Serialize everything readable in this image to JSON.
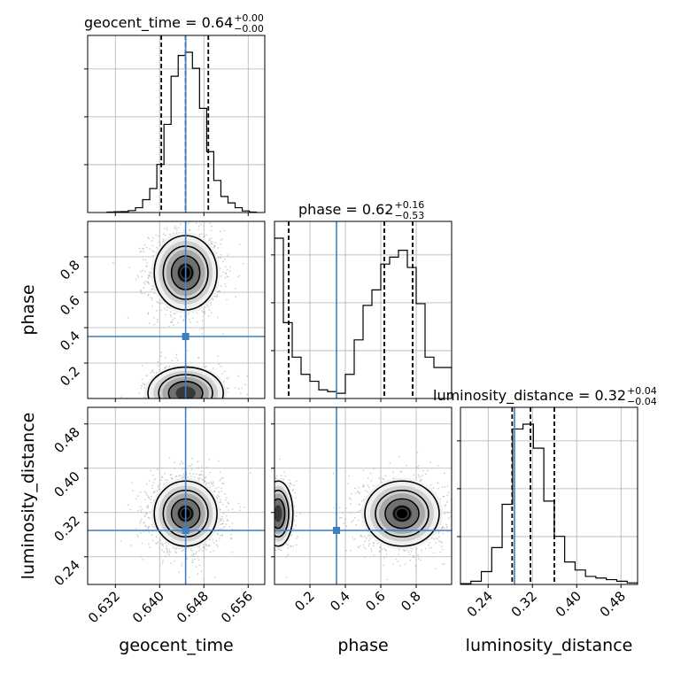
{
  "chart_data": {
    "type": "corner",
    "parameters": [
      "geocent_time",
      "phase",
      "luminosity_distance"
    ],
    "titles": [
      {
        "param": "geocent_time",
        "prefix": "geocent_time = ",
        "median": "0.64",
        "plus": "+0.00",
        "minus": "−0.00"
      },
      {
        "param": "phase",
        "prefix": "phase = ",
        "median": "0.62",
        "plus": "+0.16",
        "minus": "−0.53"
      },
      {
        "param": "luminosity_distance",
        "prefix": "luminosity_distance = ",
        "median": "0.32",
        "plus": "+0.04",
        "minus": "−0.04"
      }
    ],
    "axes": {
      "geocent_time": {
        "range": [
          0.627,
          0.659
        ],
        "ticks": [
          0.632,
          0.64,
          0.648,
          0.656
        ],
        "tick_labels": [
          "0.632",
          "0.640",
          "0.648",
          "0.656"
        ]
      },
      "phase": {
        "range": [
          0.0,
          1.0
        ],
        "ticks": [
          0.2,
          0.4,
          0.6,
          0.8
        ],
        "tick_labels": [
          "0.2",
          "0.4",
          "0.6",
          "0.8"
        ]
      },
      "luminosity_distance": {
        "range": [
          0.19,
          0.51
        ],
        "ticks": [
          0.24,
          0.32,
          0.4,
          0.48
        ],
        "tick_labels": [
          "0.24",
          "0.32",
          "0.40",
          "0.48"
        ]
      }
    },
    "truths": {
      "geocent_time": 0.6447,
      "phase": 0.35,
      "luminosity_distance": 0.2876
    },
    "quantiles": {
      "geocent_time": [
        0.6403,
        0.6447,
        0.6488
      ],
      "phase": [
        0.08,
        0.62,
        0.78
      ],
      "luminosity_distance": [
        0.2834,
        0.3165,
        0.3596
      ]
    },
    "histograms": {
      "geocent_time": [
        0.3,
        0.5,
        0.6,
        1.2,
        3.0,
        8.0,
        15.0,
        30.0,
        55.0,
        85.0,
        98.0,
        100.0,
        90.0,
        65.0,
        38.0,
        20.0,
        10.0,
        6.0,
        3.0,
        1.0,
        0.3
      ],
      "phase": [
        93,
        44,
        24,
        14,
        10,
        5,
        4,
        3,
        14,
        34,
        54,
        63,
        78,
        82,
        86,
        76,
        55,
        24,
        18,
        18
      ],
      "luminosity_distance": [
        0.5,
        2,
        8,
        23,
        50,
        97,
        100,
        85,
        52,
        30,
        14,
        9,
        5,
        4,
        3,
        2,
        1
      ]
    },
    "grid": true
  }
}
